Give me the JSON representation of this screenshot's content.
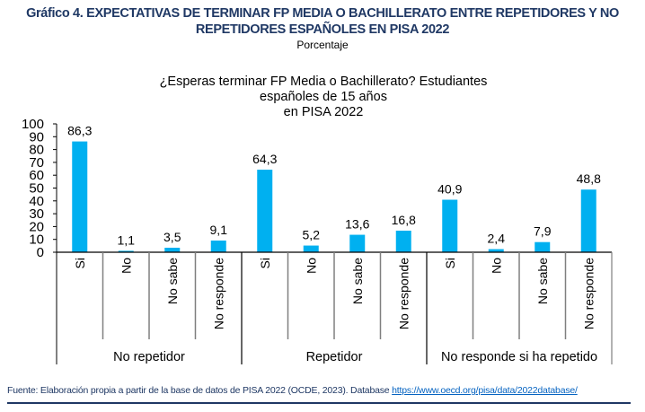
{
  "header": {
    "title_line1": "Gráfico 4. EXPECTATIVAS DE TERMINAR FP MEDIA O BACHILLERATO ENTRE REPETIDORES Y NO",
    "title_line2": "REPETIDORES ESPAÑOLES EN PISA 2022",
    "subtitle": "Porcentaje"
  },
  "footer": {
    "source_text": "Fuente: Elaboración propia a partir de la base de datos de PISA 2022 (OCDE, 2023). Database ",
    "link_text": "https://www.oecd.org/pisa/data/2022database/"
  },
  "colors": {
    "bar": "#00B0F0",
    "title": "#1F3864",
    "link": "#0563C1"
  },
  "chart_data": {
    "type": "bar",
    "title_line1": "¿Esperas terminar FP Media o Bachillerato? Estudiantes españoles de 15 años",
    "title_line2": "en PISA 2022",
    "xlabel": "",
    "ylabel": "",
    "ylim": [
      0,
      100
    ],
    "yticks": [
      "0",
      "10",
      "20",
      "30",
      "40",
      "50",
      "60",
      "70",
      "80",
      "90",
      "100"
    ],
    "groups": [
      {
        "name": "No repetidor",
        "categories": [
          "Si",
          "No",
          "No sabe",
          "No responde"
        ],
        "values": [
          86.3,
          1.1,
          3.5,
          9.1
        ],
        "labels": [
          "86,3",
          "1,1",
          "3,5",
          "9,1"
        ]
      },
      {
        "name": "Repetidor",
        "categories": [
          "Si",
          "No",
          "No sabe",
          "No responde"
        ],
        "values": [
          64.3,
          5.2,
          13.6,
          16.8
        ],
        "labels": [
          "64,3",
          "5,2",
          "13,6",
          "16,8"
        ]
      },
      {
        "name": "No responde si ha repetido",
        "categories": [
          "Si",
          "No",
          "No sabe",
          "No responde"
        ],
        "values": [
          40.9,
          2.4,
          7.9,
          48.8
        ],
        "labels": [
          "40,9",
          "2,4",
          "7,9",
          "48,8"
        ]
      }
    ],
    "grid": false,
    "legend": "none"
  }
}
